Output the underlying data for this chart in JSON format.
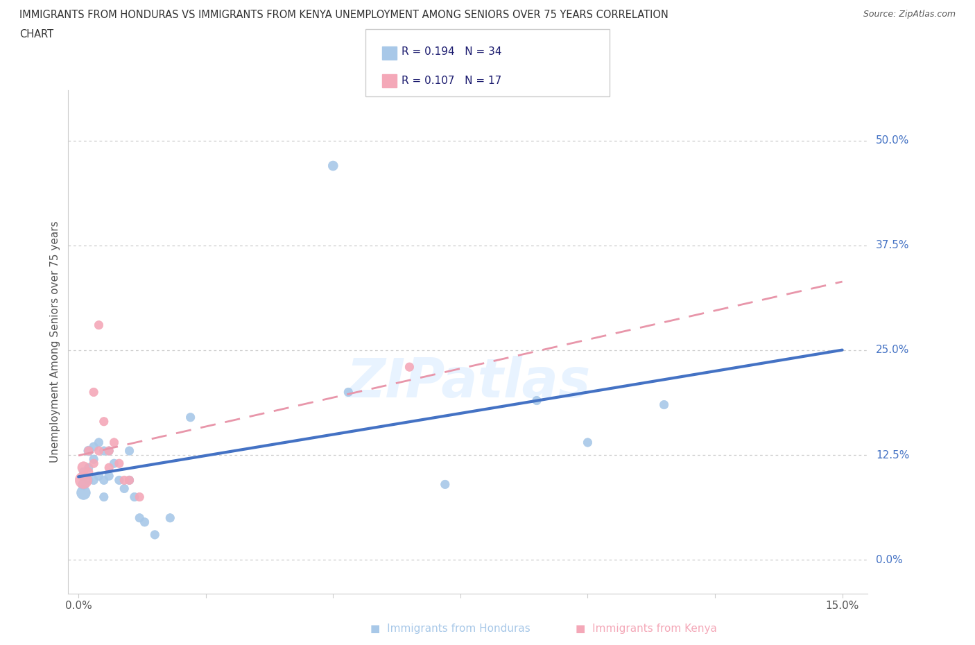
{
  "title_line1": "IMMIGRANTS FROM HONDURAS VS IMMIGRANTS FROM KENYA UNEMPLOYMENT AMONG SENIORS OVER 75 YEARS CORRELATION",
  "title_line2": "CHART",
  "source": "Source: ZipAtlas.com",
  "ylabel": "Unemployment Among Seniors over 75 years",
  "xlim": [
    -0.002,
    0.155
  ],
  "ylim": [
    -0.04,
    0.56
  ],
  "ytick_vals": [
    0.0,
    0.125,
    0.25,
    0.375,
    0.5
  ],
  "ytick_labels_right": [
    "0.0%",
    "12.5%",
    "25.0%",
    "37.5%",
    "50.0%"
  ],
  "xtick_vals": [
    0.0,
    0.025,
    0.05,
    0.075,
    0.1,
    0.125,
    0.15
  ],
  "xtick_labels": [
    "0.0%",
    "",
    "",
    "",
    "",
    "",
    "15.0%"
  ],
  "honduras_scatter_color": "#a8c8e8",
  "kenya_scatter_color": "#f4a8b8",
  "honduras_line_color": "#4472c4",
  "kenya_line_color": "#e896aa",
  "text_color_dark": "#1a1a6e",
  "text_color_label": "#4472c4",
  "grid_color": "#cccccc",
  "R_honduras": 0.194,
  "N_honduras": 34,
  "R_kenya": 0.107,
  "N_kenya": 17,
  "watermark": "ZIPatlas",
  "honduras_x": [
    0.001,
    0.001,
    0.001,
    0.001,
    0.002,
    0.002,
    0.002,
    0.003,
    0.003,
    0.003,
    0.004,
    0.004,
    0.005,
    0.005,
    0.005,
    0.006,
    0.006,
    0.007,
    0.008,
    0.009,
    0.01,
    0.01,
    0.011,
    0.012,
    0.013,
    0.015,
    0.018,
    0.022,
    0.05,
    0.053,
    0.072,
    0.09,
    0.1,
    0.115
  ],
  "honduras_y": [
    0.09,
    0.1,
    0.105,
    0.08,
    0.095,
    0.11,
    0.13,
    0.095,
    0.12,
    0.135,
    0.1,
    0.14,
    0.075,
    0.095,
    0.13,
    0.1,
    0.13,
    0.115,
    0.095,
    0.085,
    0.095,
    0.13,
    0.075,
    0.05,
    0.045,
    0.03,
    0.05,
    0.17,
    0.47,
    0.2,
    0.09,
    0.19,
    0.14,
    0.185
  ],
  "honduras_size": [
    120,
    100,
    80,
    200,
    80,
    80,
    100,
    80,
    80,
    80,
    80,
    80,
    80,
    80,
    80,
    80,
    80,
    80,
    80,
    80,
    80,
    80,
    80,
    80,
    80,
    80,
    80,
    80,
    100,
    80,
    80,
    80,
    80,
    80
  ],
  "kenya_x": [
    0.001,
    0.001,
    0.002,
    0.002,
    0.003,
    0.003,
    0.004,
    0.004,
    0.005,
    0.006,
    0.006,
    0.007,
    0.008,
    0.009,
    0.01,
    0.012,
    0.065
  ],
  "kenya_y": [
    0.095,
    0.11,
    0.13,
    0.105,
    0.115,
    0.2,
    0.13,
    0.28,
    0.165,
    0.13,
    0.11,
    0.14,
    0.115,
    0.095,
    0.095,
    0.075,
    0.23
  ],
  "kenya_size": [
    300,
    150,
    80,
    80,
    80,
    80,
    80,
    80,
    80,
    80,
    80,
    80,
    80,
    80,
    80,
    80,
    80
  ]
}
